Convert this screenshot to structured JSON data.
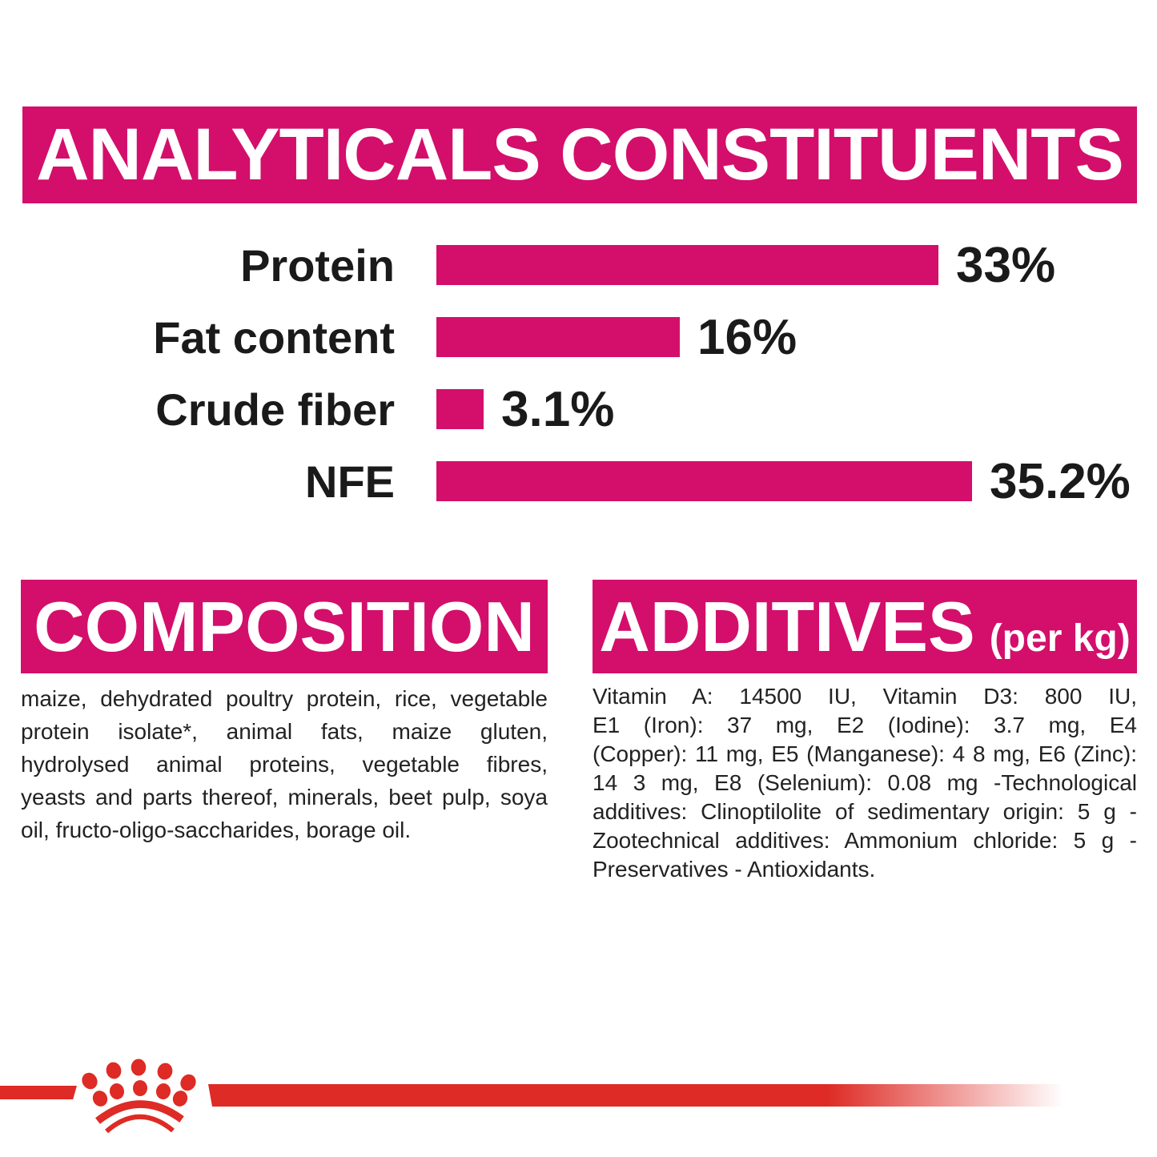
{
  "header": {
    "title": "ANALYTICALS CONSTITUENTS"
  },
  "chart_data": {
    "type": "bar",
    "orientation": "horizontal",
    "title": "ANALYTICALS CONSTITUENTS",
    "categories": [
      "Protein",
      "Fat content",
      "Crude fiber",
      "NFE"
    ],
    "values": [
      33,
      16,
      3.1,
      35.2
    ],
    "value_labels": [
      "33%",
      "16%",
      "3.1%",
      "35.2%"
    ],
    "unit": "%",
    "xlim": [
      0,
      38
    ],
    "grid": false,
    "bar_color": "#D30F6B",
    "value_label_position": "right"
  },
  "composition": {
    "title": "COMPOSITION",
    "lines": [
      "maize, dehydrated poultry protein, rice, vegetable",
      "protein isolate*, animal fats, maize gluten,",
      "hydrolysed animal proteins, vegetable fibres,",
      "yeasts and parts thereof, minerals, beet pulp, soya",
      "oil, fructo-oligo-saccharides, borage oil."
    ]
  },
  "additives": {
    "title": "ADDITIVES",
    "title_suffix": "(per kg)",
    "lines": [
      "Vitamin A: 14500 IU, Vitamin D3: 800 IU,",
      "E1 (Iron): 37 mg, E2 (Iodine): 3.7 mg, E4",
      "(Copper): 11 mg, E5 (Manganese): 4 8 mg, E6 (Zinc):",
      "14 3 mg, E8 (Selenium): 0.08 mg -Technological",
      "additives: Clinoptilolite of sedimentary origin: 5 g -",
      "Zootechnical additives: Ammonium chloride: 5 g -",
      "Preservatives - Antioxidants."
    ]
  },
  "footer": {
    "brand_icon": "royal-canin-crown"
  },
  "colors": {
    "magenta": "#D30F6B",
    "red": "#DE2B25",
    "text": "#1a1a1a"
  }
}
